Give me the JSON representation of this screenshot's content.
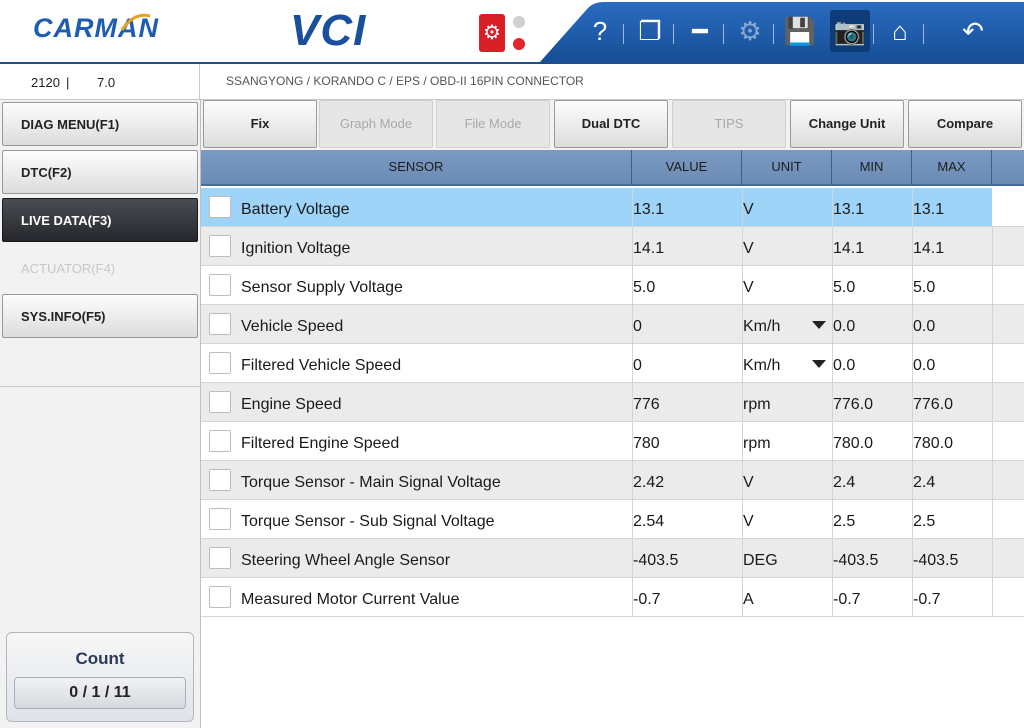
{
  "header": {
    "logo": "CARMAN",
    "product": "VCI",
    "toolbar_icons": [
      "help-icon",
      "window-icon",
      "minimize-icon",
      "settings-icon",
      "save-icon",
      "camera-icon",
      "home-icon",
      "back-icon"
    ]
  },
  "info": {
    "code": "2120",
    "separator": "|",
    "version": "7.0",
    "breadcrumb": "SSANGYONG / KORANDO C / EPS / OBD-II 16PIN CONNECTOR"
  },
  "sidebar": {
    "items": [
      {
        "label": "DIAG MENU(F1)",
        "state": "normal"
      },
      {
        "label": "DTC(F2)",
        "state": "normal"
      },
      {
        "label": "LIVE DATA(F3)",
        "state": "active"
      },
      {
        "label": "ACTUATOR(F4)",
        "state": "disabled"
      },
      {
        "label": "SYS.INFO(F5)",
        "state": "normal"
      }
    ],
    "count": {
      "label": "Count",
      "value": "0 / 1 / 11"
    }
  },
  "toolbar": {
    "buttons": [
      {
        "label": "Fix",
        "state": "normal"
      },
      {
        "label": "Graph Mode",
        "state": "disabled"
      },
      {
        "label": "File Mode",
        "state": "disabled"
      },
      {
        "label": "Dual DTC",
        "state": "normal"
      },
      {
        "label": "TIPS",
        "state": "disabled"
      },
      {
        "label": "Change Unit",
        "state": "normal"
      },
      {
        "label": "Compare",
        "state": "normal"
      }
    ]
  },
  "table": {
    "columns": [
      "SENSOR",
      "VALUE",
      "UNIT",
      "MIN",
      "MAX"
    ],
    "rows": [
      {
        "sensor": "Battery Voltage",
        "value": "13.1",
        "unit": "V",
        "dropdown": false,
        "min": "13.1",
        "max": "13.1",
        "selected": true
      },
      {
        "sensor": "Ignition Voltage",
        "value": "14.1",
        "unit": "V",
        "dropdown": false,
        "min": "14.1",
        "max": "14.1",
        "selected": false
      },
      {
        "sensor": "Sensor Supply Voltage",
        "value": "5.0",
        "unit": "V",
        "dropdown": false,
        "min": "5.0",
        "max": "5.0",
        "selected": false
      },
      {
        "sensor": "Vehicle Speed",
        "value": "0",
        "unit": "Km/h",
        "dropdown": true,
        "min": "0.0",
        "max": "0.0",
        "selected": false
      },
      {
        "sensor": "Filtered Vehicle Speed",
        "value": "0",
        "unit": "Km/h",
        "dropdown": true,
        "min": "0.0",
        "max": "0.0",
        "selected": false
      },
      {
        "sensor": "Engine Speed",
        "value": "776",
        "unit": "rpm",
        "dropdown": false,
        "min": "776.0",
        "max": "776.0",
        "selected": false
      },
      {
        "sensor": "Filtered Engine Speed",
        "value": "780",
        "unit": "rpm",
        "dropdown": false,
        "min": "780.0",
        "max": "780.0",
        "selected": false
      },
      {
        "sensor": "Torque Sensor - Main Signal Voltage",
        "value": "2.42",
        "unit": "V",
        "dropdown": false,
        "min": "2.4",
        "max": "2.4",
        "selected": false
      },
      {
        "sensor": "Torque Sensor - Sub Signal Voltage",
        "value": "2.54",
        "unit": "V",
        "dropdown": false,
        "min": "2.5",
        "max": "2.5",
        "selected": false
      },
      {
        "sensor": "Steering Wheel Angle Sensor",
        "value": "-403.5",
        "unit": "DEG",
        "dropdown": false,
        "min": "-403.5",
        "max": "-403.5",
        "selected": false
      },
      {
        "sensor": "Measured Motor Current Value",
        "value": "-0.7",
        "unit": "A",
        "dropdown": false,
        "min": "-0.7",
        "max": "-0.7",
        "selected": false
      }
    ]
  },
  "colors": {
    "brand_blue": "#1d5cb0",
    "toolbar_blue": "#1f5aa6",
    "header_blue": "#7b9ac2",
    "selected_row": "#9ed4f8"
  }
}
